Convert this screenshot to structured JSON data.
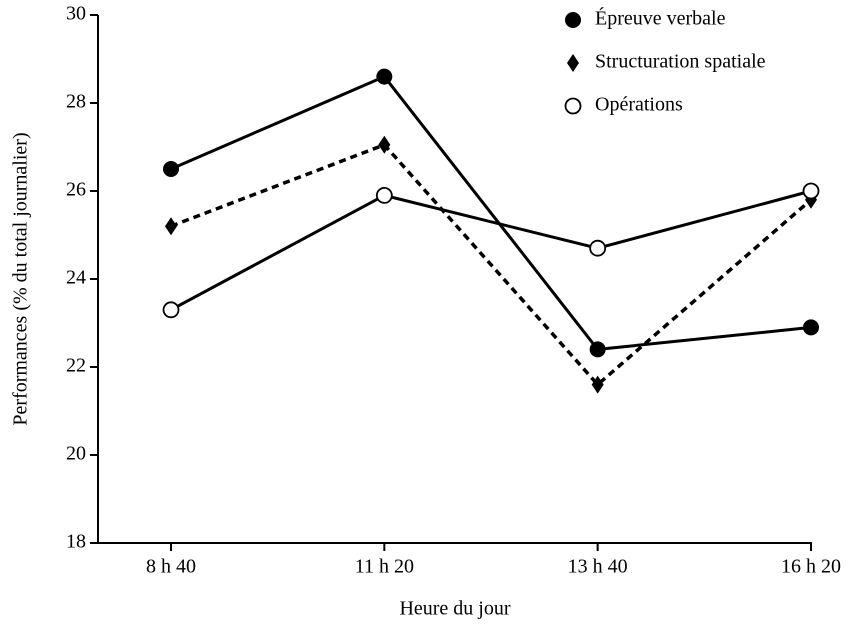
{
  "chart_data": {
    "type": "line",
    "xlabel": "Heure du jour",
    "ylabel": "Performances (% du total journalier)",
    "categories": [
      "8 h 40",
      "11 h 20",
      "13 h 40",
      "16 h 20"
    ],
    "series": [
      {
        "name": "Épreuve verbale",
        "color": "#000000",
        "line_style": "solid",
        "marker": "filled-circle",
        "values": [
          26.5,
          28.6,
          22.4,
          22.9
        ]
      },
      {
        "name": "Structuration spatiale",
        "color": "#000000",
        "line_style": "dashed",
        "marker": "diamond",
        "values": [
          25.2,
          27.05,
          21.6,
          25.8
        ]
      },
      {
        "name": "Opérations",
        "color": "#000000",
        "line_style": "solid",
        "marker": "open-circle",
        "values": [
          23.3,
          25.9,
          24.7,
          26.0
        ]
      }
    ],
    "ylim": [
      18,
      30
    ],
    "yticks": [
      18,
      20,
      22,
      24,
      26,
      28,
      30
    ],
    "grid": false,
    "legend": "upper right"
  }
}
